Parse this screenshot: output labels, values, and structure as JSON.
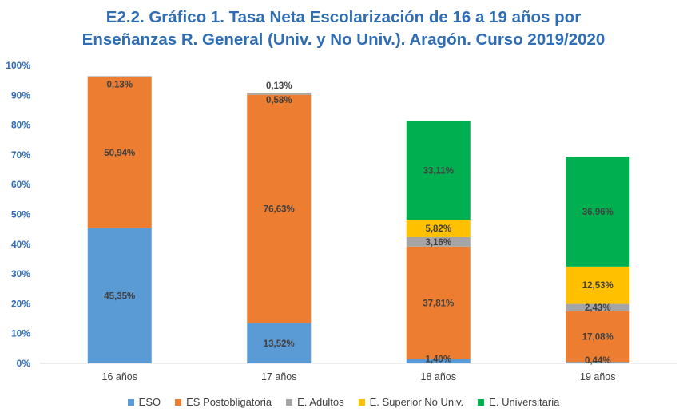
{
  "chart_data": {
    "type": "bar",
    "stacked": true,
    "title_line1": "E2.2. Gráfico 1. Tasa Neta Escolarización de 16 a 19 años por",
    "title_line2": "Enseñanzas R. General (Univ. y No Univ.). Aragón. Curso 2019/2020",
    "xlabel": "",
    "ylabel": "",
    "ylim": [
      0,
      100
    ],
    "y_ticks": [
      "0%",
      "10%",
      "20%",
      "30%",
      "40%",
      "50%",
      "60%",
      "70%",
      "80%",
      "90%",
      "100%"
    ],
    "grid": false,
    "legend_position": "bottom",
    "categories": [
      "16 años",
      "17 años",
      "18 años",
      "19 años"
    ],
    "series": [
      {
        "name": "ESO",
        "color": "#5b9bd5",
        "values": [
          45.35,
          13.52,
          1.4,
          0.44
        ],
        "labels": [
          "45,35%",
          "13,52%",
          "1,40%",
          "0,44%"
        ]
      },
      {
        "name": "ES Postobligatoria",
        "color": "#ed7d31",
        "values": [
          50.94,
          76.63,
          37.81,
          17.08
        ],
        "labels": [
          "50,94%",
          "76,63%",
          "37,81%",
          "17,08%"
        ]
      },
      {
        "name": "E. Adultos",
        "color": "#a5a5a5",
        "values": [
          0.13,
          0.58,
          3.16,
          2.43
        ],
        "labels": [
          "0,13%",
          "0,58%",
          "3,16%",
          "2,43%"
        ]
      },
      {
        "name": "E. Superior No Univ.",
        "color": "#ffc000",
        "values": [
          0,
          0.13,
          5.82,
          12.53
        ],
        "labels": [
          "",
          "0,13%",
          "5,82%",
          "12,53%"
        ]
      },
      {
        "name": "E. Universitaria",
        "color": "#00b050",
        "values": [
          0,
          0,
          33.11,
          36.96
        ],
        "labels": [
          "",
          "",
          "33,11%",
          "36,96%"
        ]
      }
    ]
  }
}
